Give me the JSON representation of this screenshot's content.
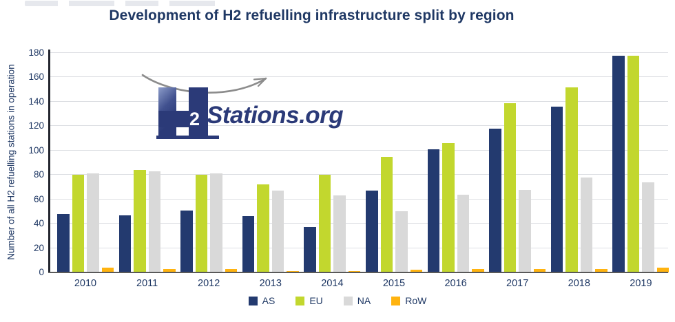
{
  "title": "Development of H2 refuelling infrastructure split by region",
  "y_axis": {
    "title": "Number of all H2 refuelling stations in operation",
    "ticks": [
      180,
      160,
      140,
      120,
      100,
      80,
      60,
      40,
      20,
      0
    ]
  },
  "logo": {
    "mark": "H",
    "subscript": "2",
    "text": "Stations.org"
  },
  "colors": {
    "title_navy": "#1F3864",
    "axis_text": "#1F3864",
    "gridline": "#DCDEE2",
    "baseline": "#595959",
    "y_axis_line": "#23262F",
    "logo_navy": "#2B3A78",
    "swoosh_gray": "#8C8C8C",
    "bar_as": "#233A6F",
    "bar_eu": "#C2D72E",
    "bar_na": "#D9D9D9",
    "bar_row": "#FFB30F"
  },
  "chart_data": {
    "type": "bar",
    "title": "Development of H2 refuelling infrastructure split by region",
    "categories": [
      "2010",
      "2011",
      "2012",
      "2013",
      "2014",
      "2015",
      "2016",
      "2017",
      "2018",
      "2019"
    ],
    "series": [
      {
        "name": "AS",
        "color": "#233A6F",
        "values": [
          48,
          47,
          51,
          46,
          37,
          67,
          101,
          118,
          136,
          178
        ]
      },
      {
        "name": "EU",
        "color": "#C2D72E",
        "values": [
          80,
          84,
          80,
          72,
          80,
          95,
          106,
          139,
          152,
          178
        ]
      },
      {
        "name": "NA",
        "color": "#D9D9D9",
        "values": [
          81,
          83,
          81,
          67,
          63,
          50,
          64,
          68,
          78,
          74
        ]
      },
      {
        "name": "RoW",
        "color": "#FFB30F",
        "values": [
          4,
          3,
          3,
          1,
          1,
          2,
          3,
          3,
          3,
          4
        ]
      }
    ],
    "xlabel": "",
    "ylabel": "Number of all H2 refuelling stations in operation",
    "ylim": [
      0,
      180
    ],
    "ytick_step": 20,
    "grid": true,
    "legend_position": "bottom"
  }
}
